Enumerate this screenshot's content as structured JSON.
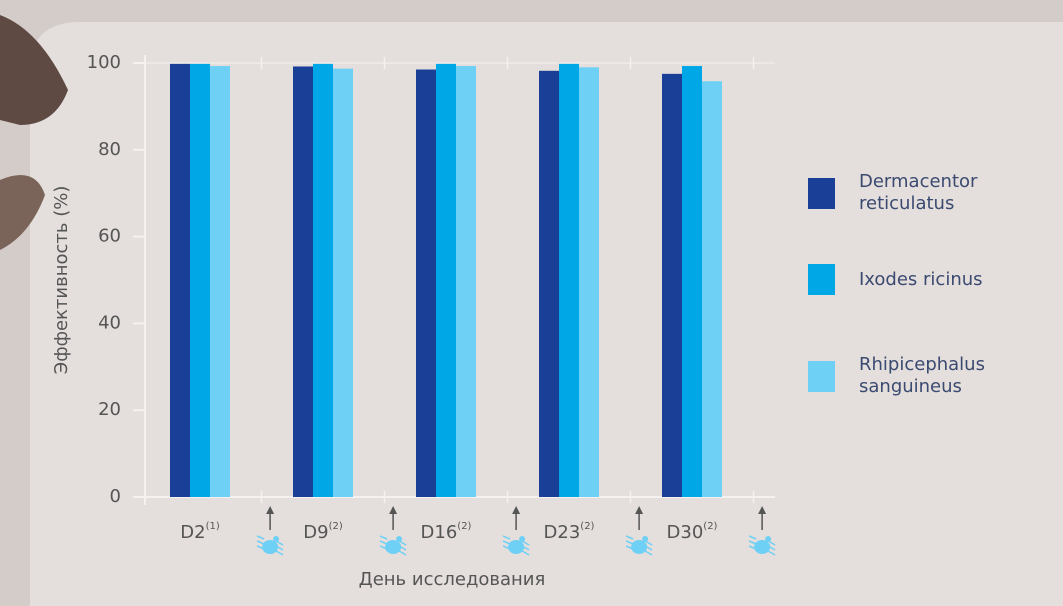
{
  "chart_data": {
    "type": "bar",
    "y_label": "Эффективность (%)",
    "x_label": "День исследования",
    "categories": [
      "D2",
      "D9",
      "D16",
      "D23",
      "D30"
    ],
    "category_superscripts": [
      "(1)",
      "(2)",
      "(2)",
      "(2)",
      "(2)"
    ],
    "series": [
      {
        "name": "Dermacentor reticulatus",
        "color": "#1a3f96",
        "values": [
          99.8,
          99.2,
          98.5,
          98.2,
          97.5
        ]
      },
      {
        "name": "Ixodes ricinus",
        "color": "#00a7e6",
        "values": [
          99.8,
          99.8,
          99.8,
          99.8,
          99.3
        ]
      },
      {
        "name": "Rhipicephalus sanguineus",
        "color": "#6fd0f5",
        "values": [
          99.3,
          98.7,
          99.3,
          99.0,
          95.8
        ]
      }
    ],
    "ylim": [
      0,
      100
    ],
    "yticks": [
      0,
      20,
      40,
      60,
      80,
      100
    ],
    "grid": false,
    "legend": "right"
  }
}
